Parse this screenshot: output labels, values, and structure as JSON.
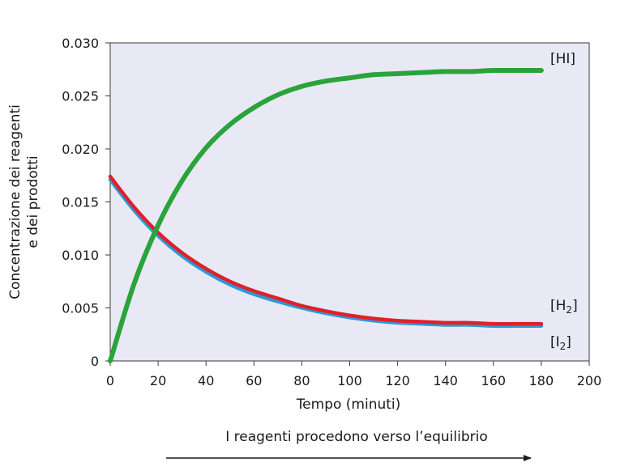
{
  "chart_data": {
    "type": "line",
    "xlabel": "Tempo (minuti)",
    "ylabel_lines": [
      "Concentrazione dei reagenti",
      "e dei prodotti"
    ],
    "caption": "I reagenti procedono verso l’equilibrio",
    "xlim": [
      0,
      200
    ],
    "ylim": [
      0,
      0.03
    ],
    "x_ticks": [
      "0",
      "20",
      "40",
      "60",
      "80",
      "100",
      "120",
      "140",
      "160",
      "180",
      "200"
    ],
    "y_ticks": [
      "0",
      "0.005",
      "0.010",
      "0.015",
      "0.020",
      "0.025",
      "0.030"
    ],
    "grid": false,
    "plot_background": "#e8e9f5",
    "series": [
      {
        "label_parts": [
          "[HI]"
        ],
        "color": "#2aa43a",
        "x": [
          0,
          10,
          20,
          30,
          40,
          50,
          60,
          70,
          80,
          90,
          100,
          110,
          120,
          130,
          140,
          150,
          160,
          170,
          180
        ],
        "y": [
          0,
          0.0073,
          0.0128,
          0.017,
          0.0201,
          0.0223,
          0.0239,
          0.0251,
          0.0259,
          0.0264,
          0.0267,
          0.027,
          0.0271,
          0.0272,
          0.0273,
          0.0273,
          0.0274,
          0.0274,
          0.0274
        ]
      },
      {
        "label_parts": [
          "[H",
          "2",
          "]"
        ],
        "color": "#e0202a",
        "x": [
          0,
          10,
          20,
          30,
          40,
          50,
          60,
          70,
          80,
          90,
          100,
          110,
          120,
          130,
          140,
          150,
          160,
          170,
          180
        ],
        "y": [
          0.0174,
          0.0145,
          0.0121,
          0.0102,
          0.0087,
          0.0075,
          0.0066,
          0.0059,
          0.0052,
          0.0047,
          0.0043,
          0.004,
          0.0038,
          0.0037,
          0.0036,
          0.0036,
          0.0035,
          0.0035,
          0.0035
        ]
      },
      {
        "label_parts": [
          "[I",
          "2",
          "]"
        ],
        "color": "#2a9ad8",
        "x": [
          0,
          10,
          20,
          30,
          40,
          50,
          60,
          70,
          80,
          90,
          100,
          110,
          120,
          130,
          140,
          150,
          160,
          170,
          180
        ],
        "y": [
          0.0171,
          0.0142,
          0.0118,
          0.0099,
          0.0084,
          0.0072,
          0.0063,
          0.0056,
          0.005,
          0.0045,
          0.0041,
          0.0038,
          0.0036,
          0.0035,
          0.0034,
          0.0034,
          0.0033,
          0.0033,
          0.0033
        ]
      }
    ]
  }
}
